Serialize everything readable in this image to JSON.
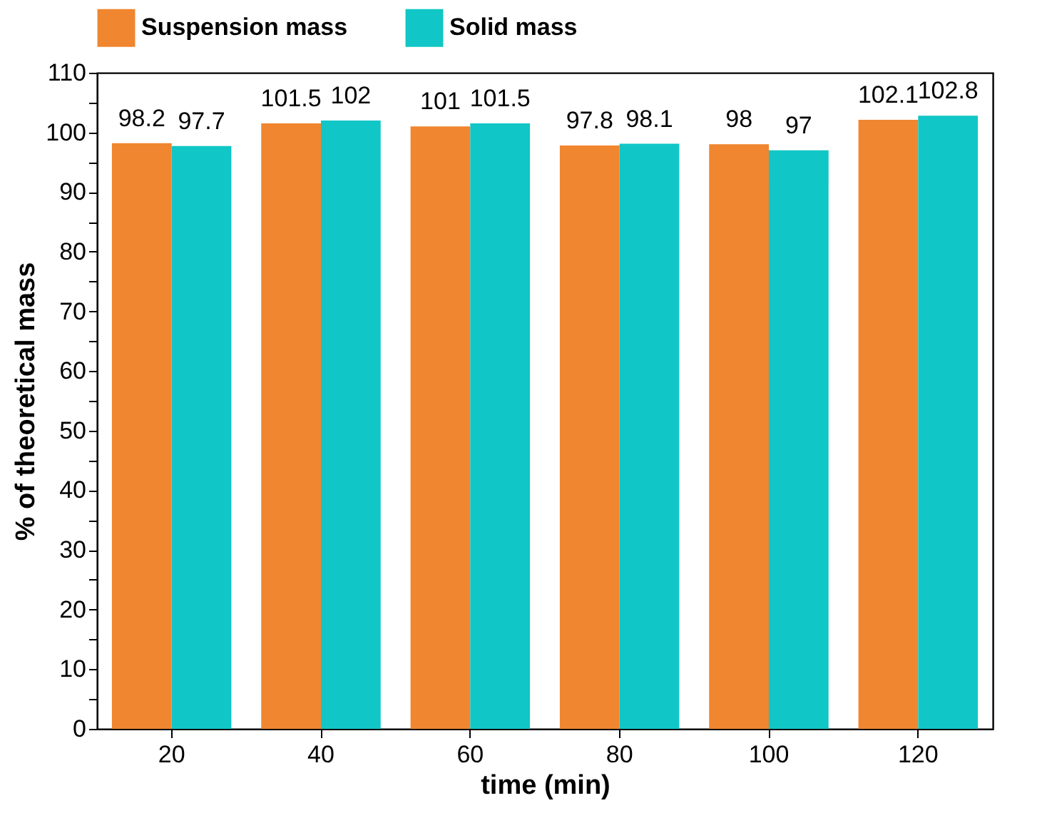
{
  "chart_data": {
    "type": "bar",
    "xlabel": "time (min)",
    "ylabel": "% of theoretical mass",
    "categories": [
      "20",
      "40",
      "60",
      "80",
      "100",
      "120"
    ],
    "series": [
      {
        "name": "Suspension mass",
        "color": "#f0862f",
        "values": [
          98.2,
          101.5,
          101,
          97.8,
          98,
          102.1
        ]
      },
      {
        "name": "Solid mass",
        "color": "#11c6c6",
        "values": [
          97.7,
          102,
          101.5,
          98.1,
          97,
          102.8
        ]
      }
    ],
    "ylim": [
      0,
      110
    ],
    "yticks": [
      0,
      {
        "value": 5,
        "label": null
      },
      10,
      {
        "value": 15,
        "label": null
      },
      20,
      {
        "value": 25,
        "label": null
      },
      30,
      {
        "value": 35,
        "label": null
      },
      40,
      {
        "value": 45,
        "label": null
      },
      50,
      {
        "value": 55,
        "label": null
      },
      60,
      {
        "value": 65,
        "label": null
      },
      70,
      {
        "value": 75,
        "label": null
      },
      80,
      {
        "value": 85,
        "label": null
      },
      90,
      {
        "value": 95,
        "label": null
      },
      100,
      {
        "value": 105,
        "label": null
      },
      110
    ],
    "data_labels": true,
    "legend": "top",
    "grid": false
  }
}
